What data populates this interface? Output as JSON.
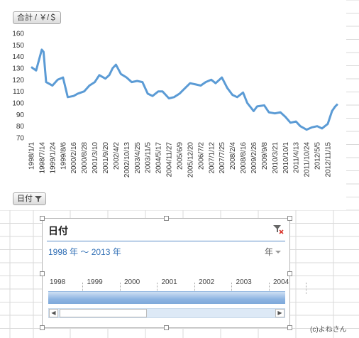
{
  "chart": {
    "series_button": "合計 / ￥/＄",
    "axis_button": "日付"
  },
  "chart_data": {
    "type": "line",
    "ylim": [
      70,
      160
    ],
    "yticks": [
      160,
      150,
      140,
      130,
      120,
      110,
      100,
      90,
      80,
      70
    ],
    "x_tick_labels": [
      "1998/1/1",
      "1998/7/14",
      "1999/1/24",
      "1999/8/6",
      "2000/2/16",
      "2000/8/28",
      "2001/3/10",
      "2001/9/20",
      "2002/4/2",
      "2002/10/13",
      "2003/4/25",
      "2003/11/5",
      "2004/5/17",
      "2004/11/27",
      "2005/6/9",
      "2005/12/20",
      "2006/7/2",
      "2007/1/12",
      "2007/7/25",
      "2008/2/4",
      "2008/8/16",
      "2009/2/26",
      "2009/9/8",
      "2010/3/21",
      "2010/10/1",
      "2011/4/13",
      "2011/10/24",
      "2012/5/5",
      "2012/11/15"
    ],
    "series": [
      {
        "color": "#5b9bd5",
        "x": [
          "1998/1/1",
          "1998/4/1",
          "1998/7/14",
          "1998/8/15",
          "1998/10/1",
          "1999/1/24",
          "1999/5/1",
          "1999/8/6",
          "1999/11/1",
          "2000/2/16",
          "2000/5/1",
          "2000/8/28",
          "2000/12/1",
          "2001/3/10",
          "2001/6/1",
          "2001/9/20",
          "2001/12/1",
          "2002/2/1",
          "2002/4/2",
          "2002/7/1",
          "2002/10/13",
          "2003/1/15",
          "2003/4/25",
          "2003/8/1",
          "2003/11/5",
          "2004/2/1",
          "2004/5/17",
          "2004/8/1",
          "2004/11/27",
          "2005/3/1",
          "2005/6/9",
          "2005/9/1",
          "2005/12/20",
          "2006/4/1",
          "2006/7/2",
          "2006/10/1",
          "2007/1/12",
          "2007/4/1",
          "2007/7/25",
          "2007/11/1",
          "2008/2/4",
          "2008/5/1",
          "2008/8/16",
          "2008/11/1",
          "2009/2/26",
          "2009/5/1",
          "2009/9/8",
          "2009/12/1",
          "2010/3/21",
          "2010/7/1",
          "2010/10/1",
          "2011/1/1",
          "2011/4/13",
          "2011/7/1",
          "2011/10/24",
          "2012/2/1",
          "2012/5/5",
          "2012/8/1",
          "2012/11/15",
          "2013/2/1",
          "2013/4/1",
          "2013/5/15"
        ],
        "values": [
          131,
          128,
          146,
          144,
          118,
          115,
          120,
          122,
          105,
          106,
          108,
          110,
          115,
          118,
          124,
          121,
          124,
          130,
          133,
          125,
          122,
          118,
          119,
          118,
          108,
          106,
          110,
          110,
          104,
          105,
          108,
          112,
          117,
          116,
          115,
          118,
          120,
          117,
          122,
          113,
          107,
          105,
          109,
          100,
          93,
          97,
          98,
          92,
          91,
          92,
          88,
          83,
          84,
          80,
          77,
          79,
          80,
          78,
          82,
          93,
          97,
          99
        ]
      }
    ]
  },
  "slicer": {
    "title": "日付",
    "range_text": "1998 年 〜 2013 年",
    "level": "年",
    "years": [
      "1998",
      "1999",
      "2000",
      "2001",
      "2002",
      "2003",
      "2004"
    ]
  },
  "credit": "(c)よねさん"
}
